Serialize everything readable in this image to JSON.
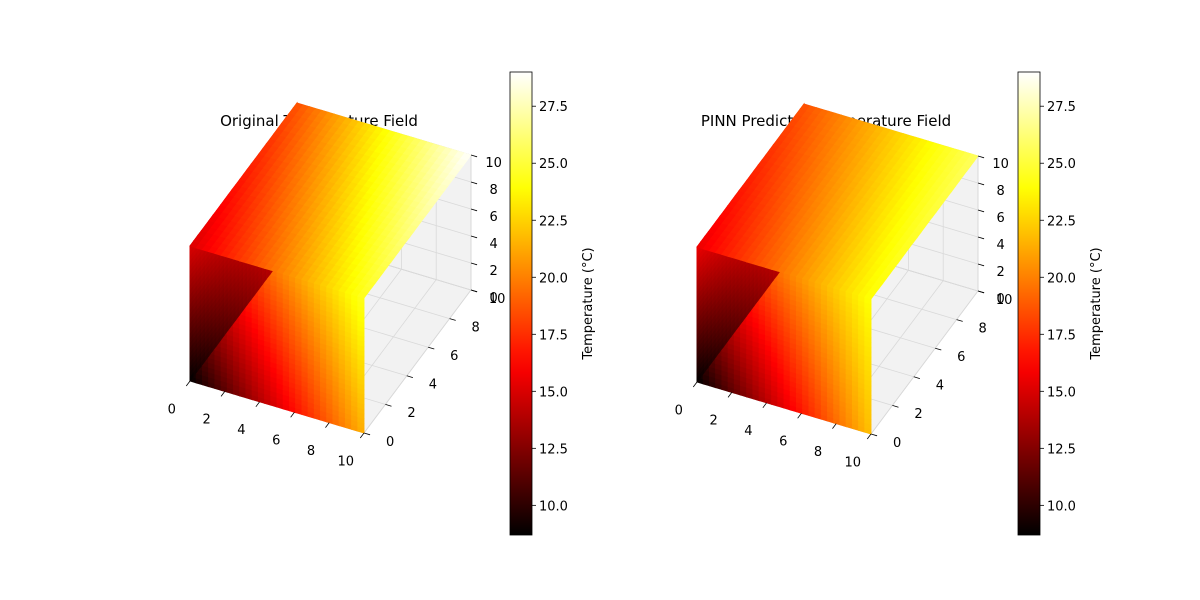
{
  "colors": {
    "colormap": [
      "#000000",
      "#ff0000",
      "#ffff00",
      "#ffffff"
    ],
    "pane": "#f2f2f2",
    "grid": "#d9d9d9"
  },
  "chart_data": [
    {
      "type": "scatter",
      "projection": "3d",
      "title": "Original Temperature Field",
      "xlabel": "",
      "ylabel": "",
      "zlabel": "",
      "xlim": [
        0,
        10
      ],
      "ylim": [
        0,
        10
      ],
      "zlim": [
        0,
        10
      ],
      "xticks": [
        "0",
        "2",
        "4",
        "6",
        "8",
        "10"
      ],
      "yticks": [
        "0",
        "2",
        "4",
        "6",
        "8",
        "10"
      ],
      "zticks": [
        "0",
        "2",
        "4",
        "6",
        "8",
        "10"
      ],
      "grid": true,
      "colormap": "hot",
      "value_range": [
        8.7,
        29.0
      ],
      "corner_values": [
        {
          "x": 0,
          "y": 0,
          "z": 0,
          "value": 8.7
        },
        {
          "x": 10,
          "y": 0,
          "z": 0,
          "value": 21.5
        },
        {
          "x": 0,
          "y": 10,
          "z": 0,
          "value": 15.5
        },
        {
          "x": 10,
          "y": 10,
          "z": 0,
          "value": 25.5
        },
        {
          "x": 0,
          "y": 0,
          "z": 10,
          "value": 15.0
        },
        {
          "x": 10,
          "y": 0,
          "z": 10,
          "value": 24.5
        },
        {
          "x": 0,
          "y": 10,
          "z": 10,
          "value": 18.5
        },
        {
          "x": 10,
          "y": 10,
          "z": 10,
          "value": 29.0
        }
      ],
      "colorbar": {
        "label": "Temperature (°C)",
        "ticks": [
          10.0,
          12.5,
          15.0,
          17.5,
          20.0,
          22.5,
          25.0,
          27.5
        ],
        "tick_labels": [
          "10.0",
          "12.5",
          "15.0",
          "17.5",
          "20.0",
          "22.5",
          "25.0",
          "27.5"
        ],
        "range": [
          8.7,
          29.0
        ]
      }
    },
    {
      "type": "scatter",
      "projection": "3d",
      "title": "PINN Predicted Temperature Field",
      "xlabel": "",
      "ylabel": "",
      "zlabel": "",
      "xlim": [
        0,
        10
      ],
      "ylim": [
        0,
        10
      ],
      "zlim": [
        0,
        10
      ],
      "xticks": [
        "0",
        "2",
        "4",
        "6",
        "8",
        "10"
      ],
      "yticks": [
        "0",
        "2",
        "4",
        "6",
        "8",
        "10"
      ],
      "zticks": [
        "0",
        "2",
        "4",
        "6",
        "8",
        "10"
      ],
      "grid": true,
      "colormap": "hot",
      "value_range": [
        8.7,
        29.0
      ],
      "corner_values": [
        {
          "x": 0,
          "y": 0,
          "z": 0,
          "value": 8.7
        },
        {
          "x": 10,
          "y": 0,
          "z": 0,
          "value": 22.0
        },
        {
          "x": 0,
          "y": 10,
          "z": 0,
          "value": 15.5
        },
        {
          "x": 10,
          "y": 10,
          "z": 0,
          "value": 24.8
        },
        {
          "x": 0,
          "y": 0,
          "z": 10,
          "value": 15.5
        },
        {
          "x": 10,
          "y": 0,
          "z": 10,
          "value": 24.0
        },
        {
          "x": 0,
          "y": 10,
          "z": 10,
          "value": 18.5
        },
        {
          "x": 10,
          "y": 10,
          "z": 10,
          "value": 25.8
        }
      ],
      "colorbar": {
        "label": "Temperature (°C)",
        "ticks": [
          10.0,
          12.5,
          15.0,
          17.5,
          20.0,
          22.5,
          25.0,
          27.5
        ],
        "tick_labels": [
          "10.0",
          "12.5",
          "15.0",
          "17.5",
          "20.0",
          "22.5",
          "25.0",
          "27.5"
        ],
        "range": [
          8.7,
          29.0
        ]
      }
    }
  ]
}
